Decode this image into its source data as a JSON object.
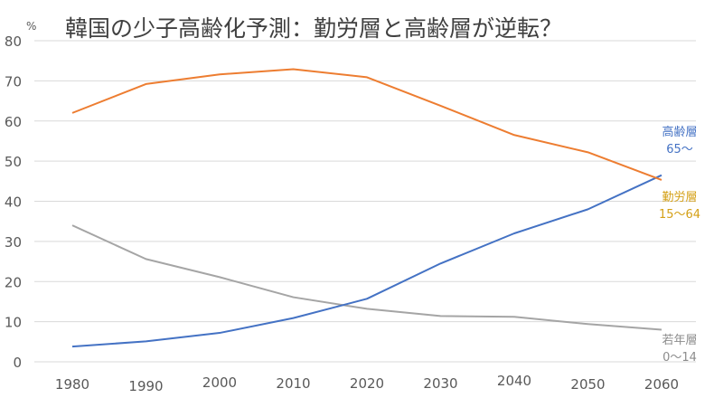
{
  "chart_data": {
    "type": "line",
    "title": "韓国の少子高齢化予測：勤労層と高齢層が逆転？",
    "ylabel": "%",
    "xlabel": "",
    "ylim": [
      0,
      80
    ],
    "yticks": [
      "0",
      "10",
      "20",
      "30",
      "40",
      "50",
      "60",
      "70",
      "80"
    ],
    "categories": [
      "1980",
      "1990",
      "2000",
      "2010",
      "2020",
      "2030",
      "2040",
      "2050",
      "2060"
    ],
    "grid": true,
    "series": [
      {
        "name": "勤労層",
        "range": "15〜64",
        "color": "#ED7D31",
        "values": [
          62,
          69.2,
          71.6,
          72.9,
          70.9,
          63.8,
          56.5,
          52.2,
          45.3
        ]
      },
      {
        "name": "高齢層",
        "range": "65〜",
        "color": "#4472C4",
        "values": [
          3.8,
          5.1,
          7.2,
          10.9,
          15.7,
          24.5,
          32.0,
          38.0,
          46.5
        ]
      },
      {
        "name": "若年層",
        "range": "0〜14",
        "color": "#A5A5A5",
        "values": [
          34.0,
          25.6,
          21.1,
          16.1,
          13.2,
          11.4,
          11.2,
          9.4,
          8.0
        ]
      }
    ]
  }
}
